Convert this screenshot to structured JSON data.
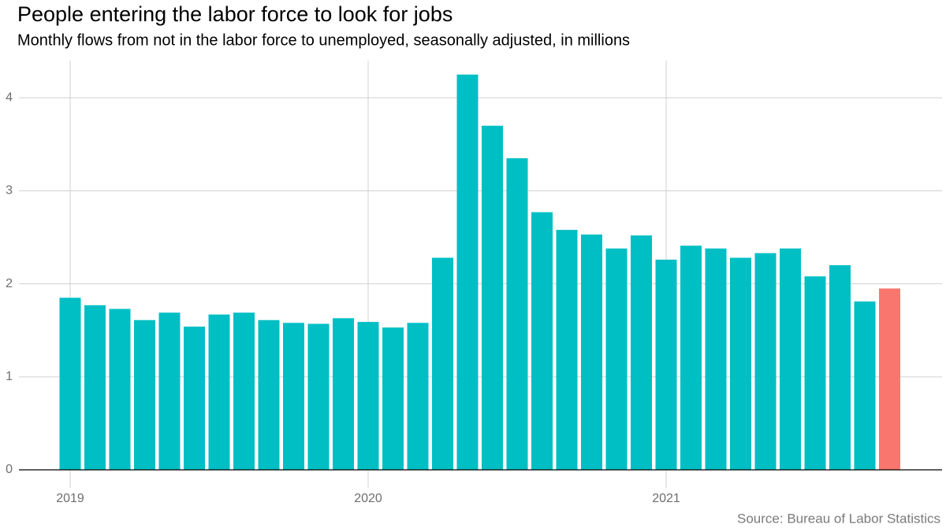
{
  "chart_data": {
    "type": "bar",
    "title": "People entering the labor force to look for jobs",
    "subtitle": "Monthly flows from not in the labor force to unemployed, seasonally adjusted, in millions",
    "source": "Source: Bureau of Labor Statistics",
    "categories": [
      "2019",
      null,
      null,
      null,
      null,
      null,
      null,
      null,
      null,
      null,
      null,
      null,
      "2020",
      null,
      null,
      null,
      null,
      null,
      null,
      null,
      null,
      null,
      null,
      null,
      "2021",
      null,
      null,
      null,
      null,
      null,
      null,
      null,
      null,
      null
    ],
    "values": [
      1.85,
      1.77,
      1.73,
      1.61,
      1.69,
      1.54,
      1.67,
      1.69,
      1.61,
      1.58,
      1.57,
      1.63,
      1.59,
      1.53,
      1.58,
      2.28,
      4.25,
      3.7,
      3.35,
      2.77,
      2.58,
      2.53,
      2.38,
      2.52,
      2.26,
      2.41,
      2.38,
      2.28,
      2.33,
      2.38,
      2.08,
      2.2,
      1.81,
      1.95
    ],
    "colors": [
      "#00bfc4",
      "#00bfc4",
      "#00bfc4",
      "#00bfc4",
      "#00bfc4",
      "#00bfc4",
      "#00bfc4",
      "#00bfc4",
      "#00bfc4",
      "#00bfc4",
      "#00bfc4",
      "#00bfc4",
      "#00bfc4",
      "#00bfc4",
      "#00bfc4",
      "#00bfc4",
      "#00bfc4",
      "#00bfc4",
      "#00bfc4",
      "#00bfc4",
      "#00bfc4",
      "#00bfc4",
      "#00bfc4",
      "#00bfc4",
      "#00bfc4",
      "#00bfc4",
      "#00bfc4",
      "#00bfc4",
      "#00bfc4",
      "#00bfc4",
      "#00bfc4",
      "#00bfc4",
      "#00bfc4",
      "#f8766d"
    ],
    "ylim": [
      0,
      4.4
    ],
    "yticks": [
      0,
      1,
      2,
      3,
      4
    ],
    "grid": true
  }
}
